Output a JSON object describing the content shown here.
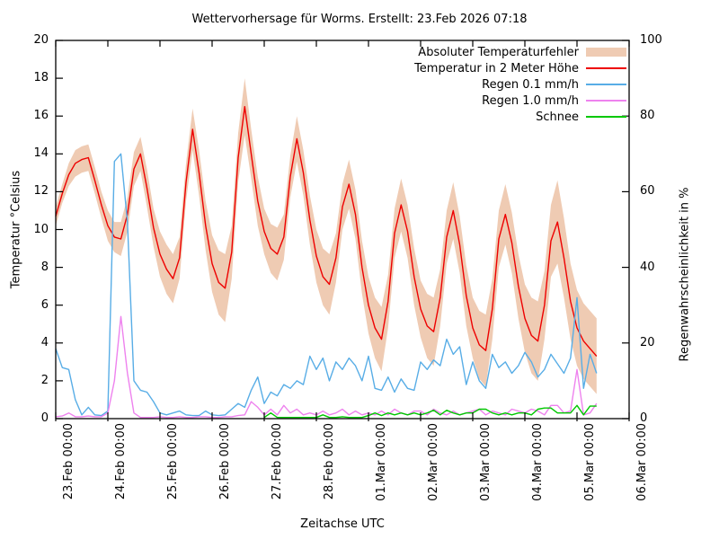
{
  "title": "Wettervorhersage für Worms. Erstellt: 23.Feb 2026 07:18",
  "axes": {
    "left_label": "Temperatur °Celsius",
    "right_label": "Regenwahrscheinlichkeit in %",
    "x_label": "Zeitachse UTC",
    "left_ticks": [
      0,
      2,
      4,
      6,
      8,
      10,
      12,
      14,
      16,
      18,
      20
    ],
    "right_ticks": [
      0,
      20,
      40,
      60,
      80,
      100
    ],
    "x_tick_labels": [
      "23.Feb 00:00",
      "24.Feb 00:00",
      "25.Feb 00:00",
      "26.Feb 00:00",
      "27.Feb 00:00",
      "28.Feb 00:00",
      "01.Mar 00:00",
      "02.Mar 00:00",
      "03.Mar 00:00",
      "04.Mar 00:00",
      "05.Mar 00:00",
      "06.Mar 00:00"
    ]
  },
  "legend": [
    {
      "label": "Absoluter Temperaturfehler",
      "type": "band",
      "color": "#efcbb3"
    },
    {
      "label": "Temperatur in 2 Meter Höhe",
      "type": "line",
      "color": "#ee0000"
    },
    {
      "label": "Regen 0.1 mm/h",
      "type": "line",
      "color": "#58ade6"
    },
    {
      "label": "Regen 1.0 mm/h",
      "type": "line",
      "color": "#ee82ee"
    },
    {
      "label": "Schnee",
      "type": "line",
      "color": "#00c800"
    }
  ],
  "chart_data": {
    "type": "line",
    "title": "Wettervorhersage für Worms. Erstellt: 23.Feb 2026 07:18",
    "xlabel": "Zeitachse UTC",
    "ylabel_left": "Temperatur °Celsius",
    "ylabel_right": "Regenwahrscheinlichkeit in %",
    "ylim_left": [
      0,
      20
    ],
    "ylim_right": [
      0,
      100
    ],
    "x_unit": "hours since 23.Feb 00:00 UTC",
    "x_range_hours": [
      0,
      264
    ],
    "grid": false,
    "legend_position": "top-right",
    "time_hours": [
      0,
      3,
      6,
      9,
      12,
      15,
      18,
      21,
      24,
      27,
      30,
      33,
      36,
      39,
      42,
      45,
      48,
      51,
      54,
      57,
      60,
      63,
      66,
      69,
      72,
      75,
      78,
      81,
      84,
      87,
      90,
      93,
      96,
      99,
      102,
      105,
      108,
      111,
      114,
      117,
      120,
      123,
      126,
      129,
      132,
      135,
      138,
      141,
      144,
      147,
      150,
      153,
      156,
      159,
      162,
      165,
      168,
      171,
      174,
      177,
      180,
      183,
      186,
      189,
      192,
      195,
      198,
      201,
      204,
      207,
      210,
      213,
      216,
      219,
      222,
      225,
      228,
      231,
      234,
      237,
      240,
      243,
      246,
      249
    ],
    "series": [
      {
        "name": "Absoluter Temperaturfehler",
        "role": "error-band-half-width",
        "axis": "left",
        "unit": "°C",
        "color": "#efcbb3",
        "values": [
          0.5,
          0.5,
          0.6,
          0.7,
          0.7,
          0.7,
          0.7,
          0.7,
          0.8,
          0.8,
          0.9,
          0.9,
          0.9,
          0.9,
          1.0,
          1.0,
          1.2,
          1.3,
          1.3,
          1.1,
          1.0,
          1.1,
          1.2,
          1.3,
          1.5,
          1.7,
          1.8,
          1.4,
          1.3,
          1.5,
          1.3,
          1.3,
          1.2,
          1.3,
          1.4,
          1.2,
          1.1,
          1.2,
          1.2,
          1.3,
          1.4,
          1.5,
          1.6,
          1.3,
          1.2,
          1.3,
          1.3,
          1.4,
          1.5,
          1.6,
          1.7,
          1.4,
          1.3,
          1.4,
          1.4,
          1.5,
          1.5,
          1.7,
          1.8,
          1.5,
          1.4,
          1.5,
          1.5,
          1.6,
          1.6,
          1.8,
          1.9,
          1.6,
          1.5,
          1.6,
          1.6,
          1.7,
          1.8,
          2.0,
          2.1,
          1.8,
          1.9,
          2.2,
          2.1,
          2.0,
          2.0,
          2.0,
          2.0,
          2.0
        ]
      },
      {
        "name": "Temperatur in 2 Meter Höhe",
        "role": "line",
        "axis": "left",
        "unit": "°C",
        "color": "#ee0000",
        "values": [
          10.7,
          11.9,
          12.9,
          13.5,
          13.7,
          13.8,
          12.6,
          11.3,
          10.2,
          9.6,
          9.5,
          10.8,
          13.2,
          14.0,
          12.2,
          10.1,
          8.7,
          7.9,
          7.4,
          8.5,
          12.5,
          15.3,
          13.0,
          10.2,
          8.2,
          7.2,
          6.9,
          8.8,
          13.8,
          16.5,
          14.0,
          11.5,
          9.9,
          9.0,
          8.7,
          9.6,
          12.8,
          14.8,
          13.0,
          10.5,
          8.6,
          7.5,
          7.1,
          8.5,
          11.2,
          12.4,
          10.8,
          8.0,
          6.0,
          4.8,
          4.2,
          6.2,
          9.8,
          11.3,
          9.9,
          7.5,
          5.8,
          4.9,
          4.6,
          6.4,
          9.6,
          11.0,
          9.2,
          6.5,
          4.8,
          3.9,
          3.6,
          5.8,
          9.5,
          10.8,
          9.3,
          7.0,
          5.3,
          4.4,
          4.1,
          6.0,
          9.4,
          10.4,
          8.5,
          6.2,
          4.8,
          4.1,
          3.7,
          3.3
        ]
      },
      {
        "name": "Regen 0.1 mm/h",
        "role": "line",
        "axis": "right",
        "unit": "%",
        "color": "#58ade6",
        "values": [
          18.5,
          13.5,
          13,
          5,
          1,
          3,
          1,
          0.8,
          2,
          68,
          70,
          52,
          10,
          7.5,
          7,
          4.5,
          1.5,
          1,
          1.5,
          2,
          1,
          0.8,
          0.8,
          2,
          1,
          0.8,
          1,
          2.5,
          4,
          3,
          7.5,
          11,
          4,
          7,
          6,
          9,
          8,
          10,
          9,
          16.5,
          13,
          16,
          10,
          15,
          13,
          16,
          14,
          10,
          16.5,
          8,
          7.5,
          11,
          7,
          10.5,
          8,
          7.5,
          15,
          13,
          15.5,
          14,
          21,
          17,
          19,
          9,
          15,
          10,
          8,
          17,
          13.5,
          15,
          12,
          14,
          17.5,
          15,
          11,
          13,
          17,
          14.5,
          12,
          16,
          32,
          8,
          17,
          12
        ]
      },
      {
        "name": "Regen 1.0 mm/h",
        "role": "line",
        "axis": "right",
        "unit": "%",
        "color": "#ee82ee",
        "values": [
          0.5,
          0.7,
          1.5,
          0.5,
          0.5,
          0.7,
          0.5,
          0.5,
          1.5,
          10,
          27,
          12,
          1.5,
          0.3,
          0.3,
          0.3,
          0.5,
          0.3,
          0.3,
          0.5,
          0.3,
          0.3,
          0.5,
          0.5,
          0.3,
          0.3,
          0.5,
          0.5,
          0.8,
          1,
          4.5,
          3,
          1,
          2.5,
          1,
          3.5,
          1.5,
          2.5,
          1,
          1.5,
          1,
          2,
          1,
          1.5,
          2.5,
          1,
          2,
          1,
          1.5,
          1,
          2,
          1,
          2.5,
          1.5,
          1,
          2,
          2,
          1,
          2.5,
          1.5,
          1,
          2,
          1,
          1.5,
          2,
          2.5,
          1,
          2,
          1.5,
          1,
          2.5,
          2,
          1.5,
          2.5,
          2,
          1,
          3.5,
          3.5,
          1.5,
          2,
          13,
          1,
          1.5,
          4
        ]
      },
      {
        "name": "Schnee",
        "role": "line",
        "axis": "right",
        "unit": "%",
        "color": "#00c800",
        "values": [
          null,
          null,
          null,
          null,
          null,
          null,
          null,
          null,
          null,
          null,
          null,
          null,
          null,
          null,
          null,
          null,
          null,
          null,
          null,
          null,
          null,
          null,
          null,
          null,
          null,
          null,
          null,
          null,
          null,
          null,
          null,
          null,
          0.3,
          1.5,
          0.3,
          0.3,
          0.3,
          0.3,
          0.3,
          0.3,
          0.3,
          1,
          0.3,
          0.3,
          0.5,
          0.3,
          0.3,
          0.3,
          0.8,
          1.5,
          0.8,
          1.5,
          1,
          1.5,
          1,
          1.5,
          1,
          1.5,
          2.2,
          1,
          2.2,
          1.5,
          1,
          1.5,
          1.5,
          2.5,
          2.5,
          1.5,
          1,
          1.5,
          1,
          1.5,
          1.5,
          1,
          2.5,
          2.8,
          2.8,
          1.5,
          1.5,
          1.5,
          3.5,
          1,
          3.3,
          3.3
        ]
      }
    ]
  }
}
